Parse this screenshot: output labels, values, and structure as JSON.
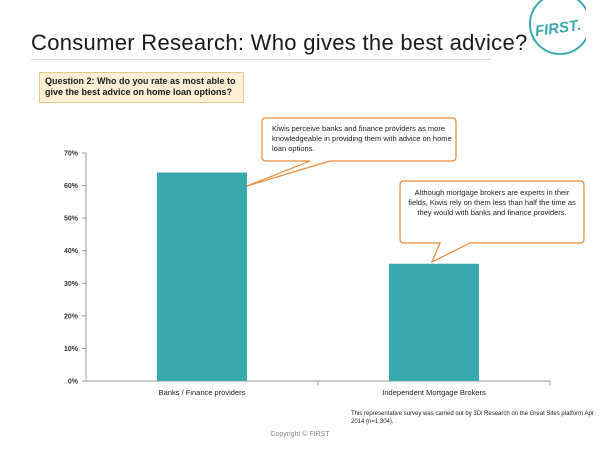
{
  "slide": {
    "title": "Consumer Research: Who gives the best advice?",
    "logo_text": "FIRST.",
    "question": "Question 2: Who do you rate as most able to give the best advice on home loan options?",
    "callout_1": "Kiwis perceive banks and finance providers as more knowledgeable in providing them with advice on home loan options.",
    "callout_2": "Although mortgage brokers are experts in their fields, Kiwis rely on them less than half the time as they would with banks and finance providers.",
    "footnote": "This representative survey was carried out by 3Di Research on the Great Sites platform Apr 2014 (n=1,304).",
    "copyright": "Copyright © FIRST"
  },
  "colors": {
    "bar": "#3aa9ad",
    "callout_border": "#ec8a3c",
    "question_bg": "#fdf0d6",
    "logo": "#3aa9ad"
  },
  "chart_data": {
    "type": "bar",
    "categories": [
      "Banks / Finance providers",
      "Independent Mortgage Brokers"
    ],
    "values": [
      64,
      36
    ],
    "ylim": [
      0,
      70
    ],
    "yticks": [
      0,
      10,
      20,
      30,
      40,
      50,
      60,
      70
    ],
    "ytick_labels": [
      "0%",
      "10%",
      "20%",
      "30%",
      "40%",
      "50%",
      "60%",
      "70%"
    ],
    "title": "",
    "xlabel": "",
    "ylabel": "",
    "grid": false,
    "legend": "none"
  }
}
